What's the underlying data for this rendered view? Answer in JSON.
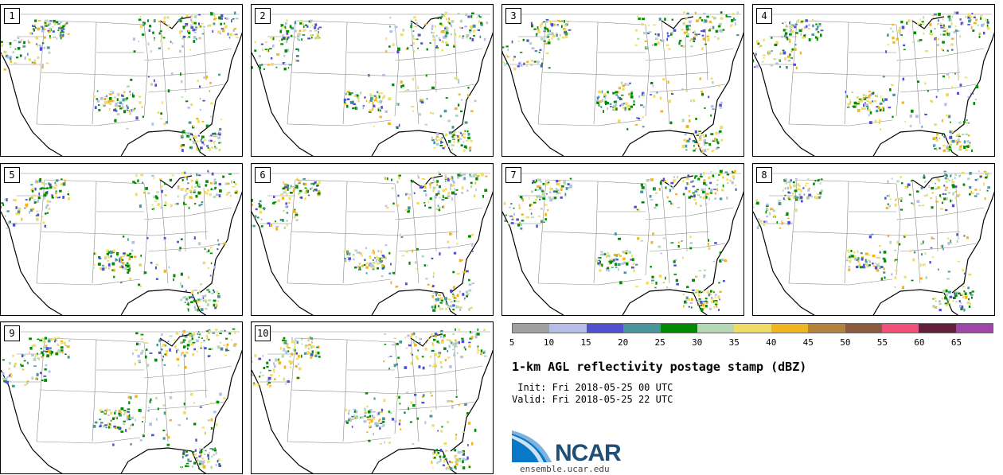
{
  "panels": [
    {
      "label": "1"
    },
    {
      "label": "2"
    },
    {
      "label": "3"
    },
    {
      "label": "4"
    },
    {
      "label": "5"
    },
    {
      "label": "6"
    },
    {
      "label": "7"
    },
    {
      "label": "8"
    },
    {
      "label": "9"
    },
    {
      "label": "10"
    }
  ],
  "colorbar": {
    "colors": [
      "#a0a0a0",
      "#b4bee6",
      "#5050d2",
      "#46969b",
      "#008c00",
      "#b4d7b4",
      "#f0dc64",
      "#f0b41e",
      "#b4823c",
      "#8c5a3c",
      "#f05078",
      "#641e3c",
      "#a046aa"
    ],
    "ticks": [
      "5",
      "10",
      "15",
      "20",
      "25",
      "30",
      "35",
      "40",
      "45",
      "50",
      "55",
      "60",
      "65"
    ]
  },
  "title": "1-km AGL reflectivity postage stamp (dBZ)",
  "init": " Init: Fri 2018-05-25 00 UTC",
  "valid": "Valid: Fri 2018-05-25 22 UTC",
  "logo": {
    "text": "NCAR",
    "url": "ensemble.ucar.edu"
  }
}
